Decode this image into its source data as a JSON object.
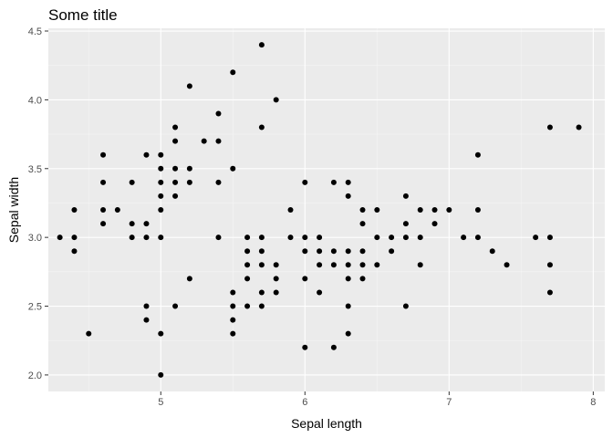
{
  "chart_data": {
    "type": "scatter",
    "title": "Some title",
    "xlabel": "Sepal length",
    "ylabel": "Sepal width",
    "xlim": [
      4.22,
      8.08
    ],
    "ylim": [
      1.88,
      4.52
    ],
    "x_ticks": [
      5,
      6,
      7,
      8
    ],
    "x_minor_ticks": [
      4.5,
      5.5,
      6.5,
      7.5
    ],
    "y_ticks": [
      2.0,
      2.5,
      3.0,
      3.5,
      4.0,
      4.5
    ],
    "y_minor_ticks": [
      2.25,
      2.75,
      3.25,
      3.75,
      4.25
    ],
    "x_tick_labels": [
      "5",
      "6",
      "7",
      "8"
    ],
    "y_tick_labels": [
      "2.0",
      "2.5",
      "3.0",
      "3.5",
      "4.0",
      "4.5"
    ],
    "grid": true,
    "colors": {
      "panel_background": "#ebebeb",
      "grid_major": "#ffffff",
      "grid_minor": "#f5f5f5",
      "point": "#000000",
      "tick_label": "#4d4d4d"
    },
    "points": [
      [
        4.3,
        3.0
      ],
      [
        4.4,
        2.9
      ],
      [
        4.4,
        3.0
      ],
      [
        4.4,
        3.2
      ],
      [
        4.5,
        2.3
      ],
      [
        4.6,
        3.1
      ],
      [
        4.6,
        3.2
      ],
      [
        4.6,
        3.4
      ],
      [
        4.6,
        3.6
      ],
      [
        4.7,
        3.2
      ],
      [
        4.8,
        3.0
      ],
      [
        4.8,
        3.1
      ],
      [
        4.8,
        3.4
      ],
      [
        4.9,
        2.4
      ],
      [
        4.9,
        2.5
      ],
      [
        4.9,
        3.0
      ],
      [
        4.9,
        3.1
      ],
      [
        4.9,
        3.6
      ],
      [
        5.0,
        2.0
      ],
      [
        5.0,
        2.3
      ],
      [
        5.0,
        3.0
      ],
      [
        5.0,
        3.2
      ],
      [
        5.0,
        3.3
      ],
      [
        5.0,
        3.4
      ],
      [
        5.0,
        3.5
      ],
      [
        5.0,
        3.6
      ],
      [
        5.1,
        2.5
      ],
      [
        5.1,
        3.3
      ],
      [
        5.1,
        3.4
      ],
      [
        5.1,
        3.5
      ],
      [
        5.1,
        3.7
      ],
      [
        5.1,
        3.8
      ],
      [
        5.2,
        2.7
      ],
      [
        5.2,
        3.4
      ],
      [
        5.2,
        3.5
      ],
      [
        5.2,
        4.1
      ],
      [
        5.3,
        3.7
      ],
      [
        5.4,
        3.0
      ],
      [
        5.4,
        3.4
      ],
      [
        5.4,
        3.7
      ],
      [
        5.4,
        3.9
      ],
      [
        5.5,
        2.3
      ],
      [
        5.5,
        2.4
      ],
      [
        5.5,
        2.5
      ],
      [
        5.5,
        2.6
      ],
      [
        5.5,
        3.5
      ],
      [
        5.5,
        4.2
      ],
      [
        5.6,
        2.5
      ],
      [
        5.6,
        2.7
      ],
      [
        5.6,
        2.8
      ],
      [
        5.6,
        2.9
      ],
      [
        5.6,
        3.0
      ],
      [
        5.7,
        2.5
      ],
      [
        5.7,
        2.6
      ],
      [
        5.7,
        2.8
      ],
      [
        5.7,
        2.9
      ],
      [
        5.7,
        3.0
      ],
      [
        5.7,
        3.8
      ],
      [
        5.7,
        4.4
      ],
      [
        5.8,
        2.6
      ],
      [
        5.8,
        2.7
      ],
      [
        5.8,
        2.8
      ],
      [
        5.8,
        4.0
      ],
      [
        5.9,
        3.0
      ],
      [
        5.9,
        3.2
      ],
      [
        6.0,
        2.2
      ],
      [
        6.0,
        2.7
      ],
      [
        6.0,
        2.9
      ],
      [
        6.0,
        3.0
      ],
      [
        6.0,
        3.4
      ],
      [
        6.1,
        2.6
      ],
      [
        6.1,
        2.8
      ],
      [
        6.1,
        2.9
      ],
      [
        6.1,
        3.0
      ],
      [
        6.2,
        2.2
      ],
      [
        6.2,
        2.8
      ],
      [
        6.2,
        2.9
      ],
      [
        6.2,
        3.4
      ],
      [
        6.3,
        2.3
      ],
      [
        6.3,
        2.5
      ],
      [
        6.3,
        2.7
      ],
      [
        6.3,
        2.8
      ],
      [
        6.3,
        2.9
      ],
      [
        6.3,
        3.3
      ],
      [
        6.3,
        3.4
      ],
      [
        6.4,
        2.7
      ],
      [
        6.4,
        2.8
      ],
      [
        6.4,
        2.9
      ],
      [
        6.4,
        3.1
      ],
      [
        6.4,
        3.2
      ],
      [
        6.5,
        2.8
      ],
      [
        6.5,
        3.0
      ],
      [
        6.5,
        3.2
      ],
      [
        6.6,
        2.9
      ],
      [
        6.6,
        3.0
      ],
      [
        6.7,
        2.5
      ],
      [
        6.7,
        3.0
      ],
      [
        6.7,
        3.1
      ],
      [
        6.7,
        3.3
      ],
      [
        6.8,
        2.8
      ],
      [
        6.8,
        3.0
      ],
      [
        6.8,
        3.2
      ],
      [
        6.9,
        3.1
      ],
      [
        6.9,
        3.2
      ],
      [
        7.0,
        3.2
      ],
      [
        7.1,
        3.0
      ],
      [
        7.2,
        3.0
      ],
      [
        7.2,
        3.2
      ],
      [
        7.2,
        3.6
      ],
      [
        7.3,
        2.9
      ],
      [
        7.4,
        2.8
      ],
      [
        7.6,
        3.0
      ],
      [
        7.7,
        2.6
      ],
      [
        7.7,
        2.8
      ],
      [
        7.7,
        3.0
      ],
      [
        7.7,
        3.8
      ],
      [
        7.9,
        3.8
      ]
    ]
  }
}
